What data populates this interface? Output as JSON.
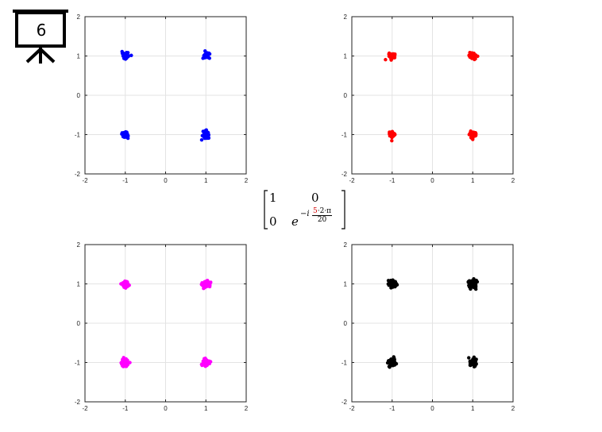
{
  "slide": {
    "number": "6"
  },
  "matrix": {
    "r1c1": "1",
    "r1c2": "0",
    "r2c1": "0",
    "base": "e",
    "exp_prefix": "−i",
    "frac_num_red": "5",
    "frac_num_rest": "·2·π",
    "frac_den": "20"
  },
  "chart_data": [
    {
      "type": "scatter",
      "position": "top-left",
      "color": "#0000ff",
      "title": "",
      "xlabel": "",
      "ylabel": "",
      "xlim": [
        -2,
        2
      ],
      "ylim": [
        -2,
        2
      ],
      "xticks": [
        "-2",
        "-1",
        "0",
        "1",
        "2"
      ],
      "yticks": [
        "-2",
        "-1",
        "0",
        "1",
        "2"
      ],
      "grid": true,
      "clusters": [
        {
          "x": -1,
          "y": 1
        },
        {
          "x": 1,
          "y": 1
        },
        {
          "x": -1,
          "y": -1
        },
        {
          "x": 1,
          "y": -1
        }
      ],
      "spread": 0.07
    },
    {
      "type": "scatter",
      "position": "top-right",
      "color": "#ff0000",
      "title": "",
      "xlabel": "",
      "ylabel": "",
      "xlim": [
        -2,
        2
      ],
      "ylim": [
        -2,
        2
      ],
      "xticks": [
        "-2",
        "-1",
        "0",
        "1",
        "2"
      ],
      "yticks": [
        "-2",
        "-1",
        "0",
        "1",
        "2"
      ],
      "grid": true,
      "clusters": [
        {
          "x": -1,
          "y": 1
        },
        {
          "x": 1,
          "y": 1
        },
        {
          "x": -1,
          "y": -1
        },
        {
          "x": 1,
          "y": -1
        }
      ],
      "spread": 0.07
    },
    {
      "type": "scatter",
      "position": "bottom-left",
      "color": "#ff00ff",
      "title": "",
      "xlabel": "",
      "ylabel": "",
      "xlim": [
        -2,
        2
      ],
      "ylim": [
        -2,
        2
      ],
      "xticks": [
        "-2",
        "-1",
        "0",
        "1",
        "2"
      ],
      "yticks": [
        "-2",
        "-1",
        "0",
        "1",
        "2"
      ],
      "grid": true,
      "clusters": [
        {
          "x": -1,
          "y": 1
        },
        {
          "x": 1,
          "y": 1
        },
        {
          "x": -1,
          "y": -1
        },
        {
          "x": 1,
          "y": -1
        }
      ],
      "spread": 0.08
    },
    {
      "type": "scatter",
      "position": "bottom-right",
      "color": "#000000",
      "title": "",
      "xlabel": "",
      "ylabel": "",
      "xlim": [
        -2,
        2
      ],
      "ylim": [
        -2,
        2
      ],
      "xticks": [
        "-2",
        "-1",
        "0",
        "1",
        "2"
      ],
      "yticks": [
        "-2",
        "-1",
        "0",
        "1",
        "2"
      ],
      "grid": true,
      "clusters": [
        {
          "x": -1,
          "y": 1
        },
        {
          "x": 1,
          "y": 1
        },
        {
          "x": -1,
          "y": -1
        },
        {
          "x": 1,
          "y": -1
        }
      ],
      "spread": 0.09
    }
  ]
}
